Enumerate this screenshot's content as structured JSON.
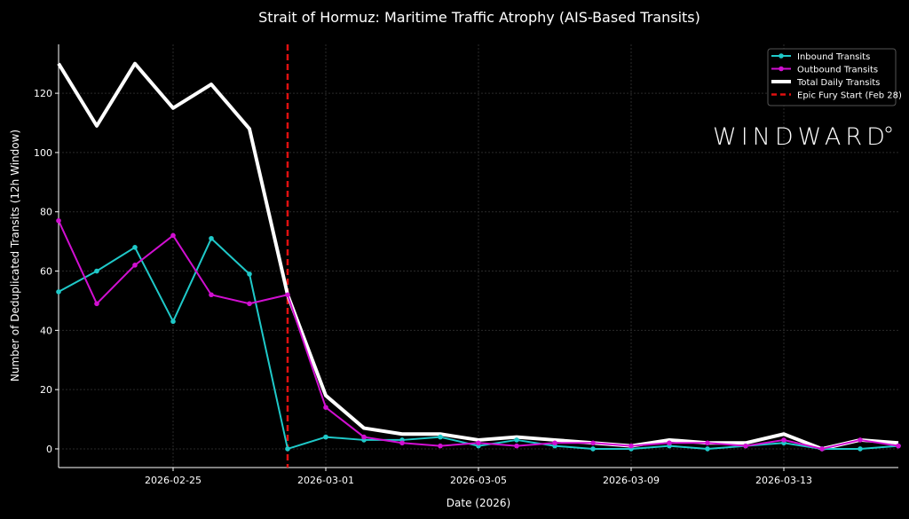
{
  "chart_data": {
    "type": "line",
    "title": "Strait of Hormuz: Maritime Traffic Atrophy (AIS-Based Transits)",
    "xlabel": "Date (2026)",
    "ylabel": "Number of Deduplicated Transits (12h Window)",
    "x": [
      "2026-02-22",
      "2026-02-23",
      "2026-02-24",
      "2026-02-25",
      "2026-02-26",
      "2026-02-27",
      "2026-02-28",
      "2026-03-01",
      "2026-03-02",
      "2026-03-03",
      "2026-03-04",
      "2026-03-05",
      "2026-03-06",
      "2026-03-07",
      "2026-03-08",
      "2026-03-09",
      "2026-03-10",
      "2026-03-11",
      "2026-03-12",
      "2026-03-13",
      "2026-03-14",
      "2026-03-15",
      "2026-03-16"
    ],
    "xlim": [
      "2026-02-22",
      "2026-03-16"
    ],
    "ylim": [
      -6.3,
      136.5
    ],
    "xticks": [
      "2026-02-25",
      "2026-03-01",
      "2026-03-05",
      "2026-03-09",
      "2026-03-13"
    ],
    "yticks": [
      0,
      20,
      40,
      60,
      80,
      100,
      120
    ],
    "grid": true,
    "legend_position": "top-right",
    "series": [
      {
        "name": "Inbound Transits",
        "color": "#1fc9c9",
        "marker": "circle",
        "values": [
          53,
          60,
          68,
          43,
          71,
          59,
          0,
          4,
          3,
          3,
          4,
          1,
          3,
          1,
          0,
          0,
          1,
          0,
          1,
          2,
          0,
          0,
          1
        ]
      },
      {
        "name": "Outbound Transits",
        "color": "#d10fd1",
        "marker": "circle",
        "values": [
          77,
          49,
          62,
          72,
          52,
          49,
          52,
          14,
          4,
          2,
          1,
          2,
          1,
          2,
          2,
          1,
          2,
          2,
          1,
          3,
          0,
          3,
          1
        ]
      },
      {
        "name": "Total Daily Transits",
        "color": "#ffffff",
        "marker": "none",
        "values": [
          130,
          109,
          130,
          115,
          123,
          108,
          52,
          18,
          7,
          5,
          5,
          3,
          4,
          3,
          2,
          1,
          3,
          2,
          2,
          5,
          0,
          3,
          2
        ]
      }
    ],
    "annotations": [
      {
        "type": "vline",
        "x": "2026-02-28",
        "label": "Epic Fury Start (Feb 28)",
        "color": "#e01010",
        "style": "dashed"
      }
    ]
  },
  "watermark": "WINDWARD"
}
